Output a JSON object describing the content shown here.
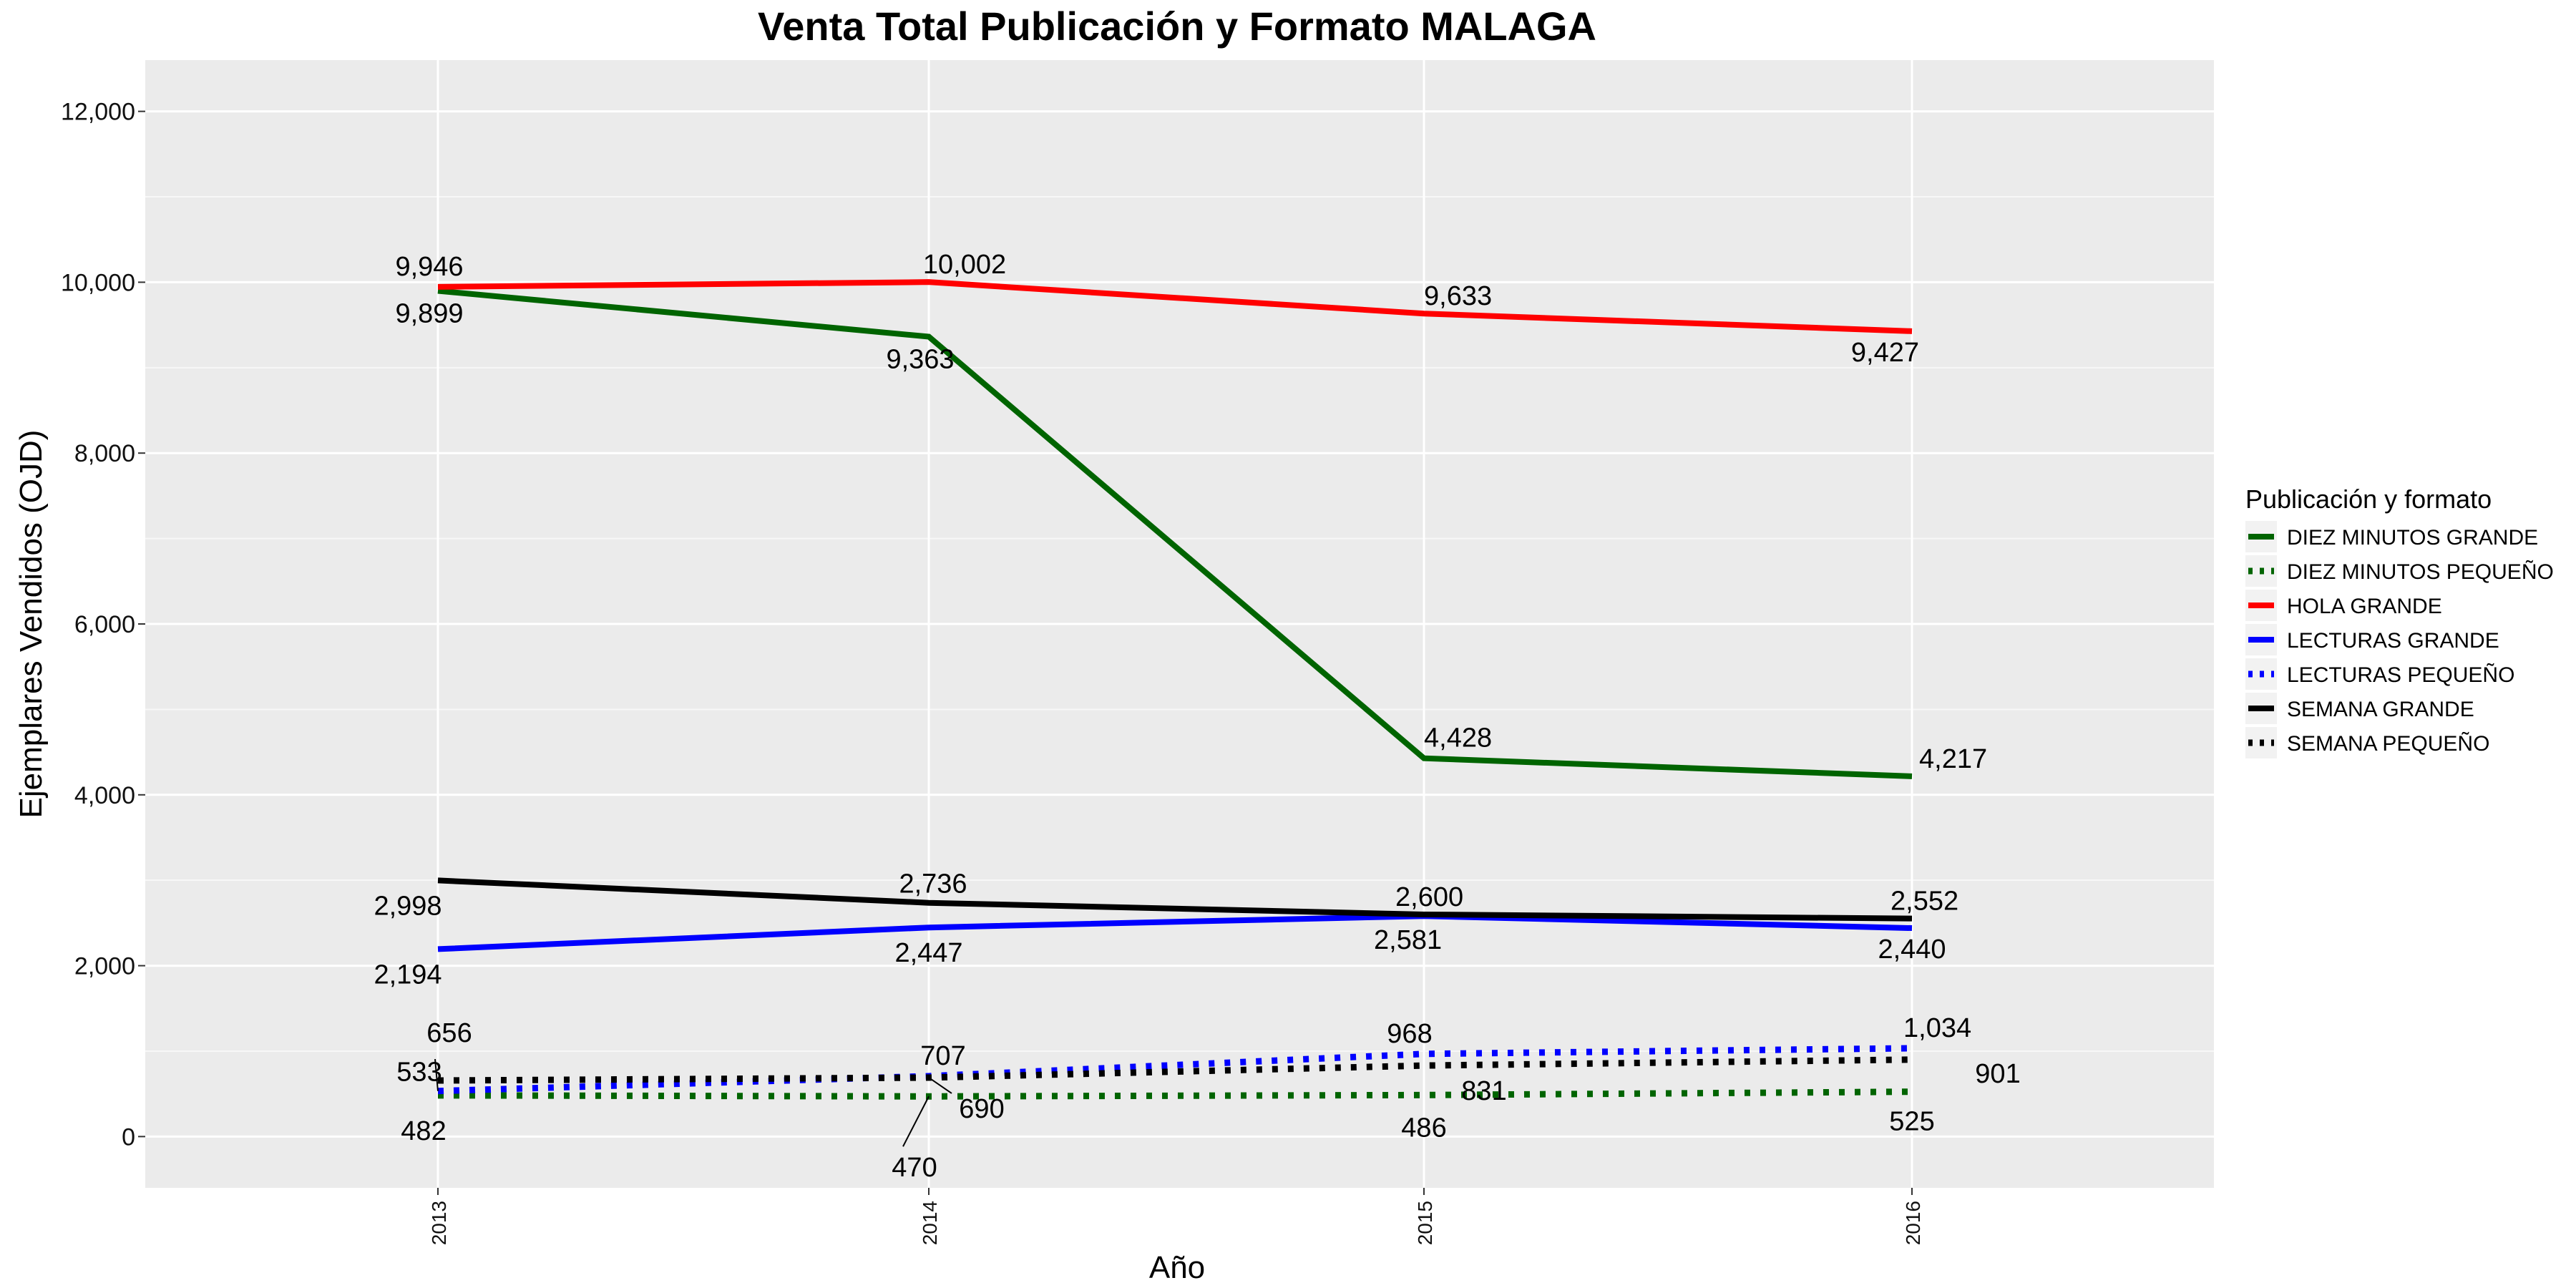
{
  "chart_data": {
    "type": "line",
    "title": "Venta Total Publicación y Formato  MALAGA",
    "xlabel": "Año",
    "ylabel": "Ejemplares Vendidos (OJD)",
    "categories": [
      "2013",
      "2014",
      "2015",
      "2016"
    ],
    "ylim": [
      -600,
      12600
    ],
    "yticks": [
      0,
      2000,
      4000,
      6000,
      8000,
      10000,
      12000
    ],
    "ytick_labels": [
      "0",
      "2,000",
      "4,000",
      "6,000",
      "8,000",
      "10,000",
      "12,000"
    ],
    "grid": true,
    "legend": {
      "title": "Publicación y formato",
      "placement": "right"
    },
    "series": [
      {
        "name": "DIEZ MINUTOS GRANDE",
        "color": "#006400",
        "style": "solid",
        "values": [
          9899,
          9363,
          4428,
          4217
        ],
        "labels": [
          "9,899",
          "9,363",
          "4,428",
          "4,217"
        ]
      },
      {
        "name": "DIEZ MINUTOS PEQUEÑO",
        "color": "#006400",
        "style": "dotted",
        "values": [
          482,
          470,
          486,
          525
        ],
        "labels": [
          "482",
          "470",
          "486",
          "525"
        ]
      },
      {
        "name": "HOLA GRANDE",
        "color": "#ff0000",
        "style": "solid",
        "values": [
          9946,
          10002,
          9633,
          9427
        ],
        "labels": [
          "9,946",
          "10,002",
          "9,633",
          "9,427"
        ]
      },
      {
        "name": "LECTURAS GRANDE",
        "color": "#0000ff",
        "style": "solid",
        "values": [
          2194,
          2447,
          2581,
          2440
        ],
        "labels": [
          "2,194",
          "2,447",
          "2,581",
          "2,440"
        ]
      },
      {
        "name": "LECTURAS PEQUEÑO",
        "color": "#0000ff",
        "style": "dotted",
        "values": [
          533,
          707,
          968,
          1034
        ],
        "labels": [
          "533",
          "707",
          "968",
          "1,034"
        ]
      },
      {
        "name": "SEMANA GRANDE",
        "color": "#000000",
        "style": "solid",
        "values": [
          2998,
          2736,
          2600,
          2552
        ],
        "labels": [
          "2,998",
          "2,736",
          "2,600",
          "2,552"
        ]
      },
      {
        "name": "SEMANA PEQUEÑO",
        "color": "#000000",
        "style": "dotted",
        "values": [
          656,
          690,
          831,
          901
        ],
        "labels": [
          "656",
          "690",
          "831",
          "901"
        ]
      }
    ]
  }
}
